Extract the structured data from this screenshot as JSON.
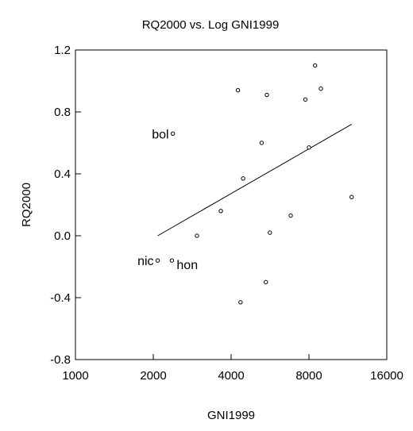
{
  "chart_data": {
    "type": "scatter",
    "title": "RQ2000 vs. Log GNI1999",
    "xlabel": "GNI1999",
    "ylabel": "RQ2000",
    "x_scale": "log",
    "xlim": [
      1000,
      16000
    ],
    "ylim": [
      -0.8,
      1.2
    ],
    "x_ticks": [
      1000,
      2000,
      4000,
      8000,
      16000
    ],
    "x_tick_labels": [
      "1000",
      "2000",
      "4000",
      "8000",
      "16000"
    ],
    "y_ticks": [
      -0.8,
      -0.4,
      0.0,
      0.4,
      0.8,
      1.2
    ],
    "y_tick_labels": [
      "-0.8",
      "-0.4",
      "0.0",
      "0.4",
      "0.8",
      "1.2"
    ],
    "grid": false,
    "points": [
      {
        "x": 2380,
        "y": 0.66,
        "label": "bol"
      },
      {
        "x": 2080,
        "y": -0.16,
        "label": "nic"
      },
      {
        "x": 2360,
        "y": -0.16,
        "label": "hon"
      },
      {
        "x": 2950,
        "y": 0.0
      },
      {
        "x": 3650,
        "y": 0.16
      },
      {
        "x": 4250,
        "y": 0.94
      },
      {
        "x": 4450,
        "y": 0.37
      },
      {
        "x": 4350,
        "y": -0.43
      },
      {
        "x": 5250,
        "y": 0.6
      },
      {
        "x": 5500,
        "y": 0.91
      },
      {
        "x": 5450,
        "y": -0.3
      },
      {
        "x": 5650,
        "y": 0.02
      },
      {
        "x": 6800,
        "y": 0.13
      },
      {
        "x": 7750,
        "y": 0.88
      },
      {
        "x": 8000,
        "y": 0.57
      },
      {
        "x": 8450,
        "y": 1.1
      },
      {
        "x": 8900,
        "y": 0.95
      },
      {
        "x": 11700,
        "y": 0.25
      }
    ],
    "fit_line": {
      "x": [
        2080,
        11700
      ],
      "y": [
        0.0,
        0.72
      ]
    }
  }
}
